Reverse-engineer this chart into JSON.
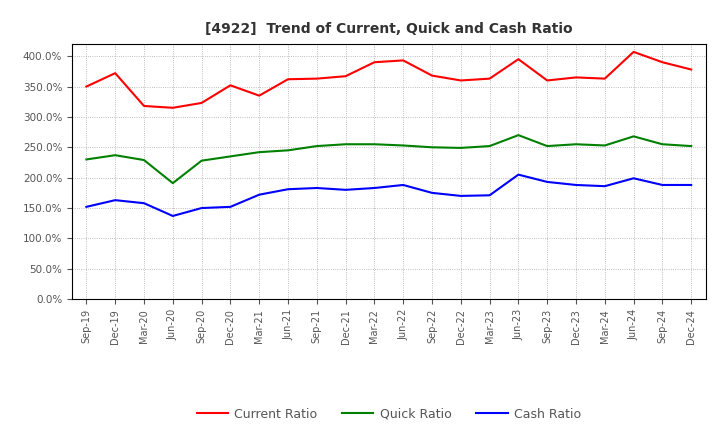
{
  "title": "[4922]  Trend of Current, Quick and Cash Ratio",
  "labels": [
    "Sep-19",
    "Dec-19",
    "Mar-20",
    "Jun-20",
    "Sep-20",
    "Dec-20",
    "Mar-21",
    "Jun-21",
    "Sep-21",
    "Dec-21",
    "Mar-22",
    "Jun-22",
    "Sep-22",
    "Dec-22",
    "Mar-23",
    "Jun-23",
    "Sep-23",
    "Dec-23",
    "Mar-24",
    "Jun-24",
    "Sep-24",
    "Dec-24"
  ],
  "current_ratio": [
    350,
    372,
    318,
    315,
    323,
    352,
    335,
    362,
    363,
    367,
    390,
    393,
    368,
    360,
    363,
    395,
    360,
    365,
    363,
    407,
    390,
    378
  ],
  "quick_ratio": [
    230,
    237,
    229,
    191,
    228,
    235,
    242,
    245,
    252,
    255,
    255,
    253,
    250,
    249,
    252,
    270,
    252,
    255,
    253,
    268,
    255,
    252
  ],
  "cash_ratio": [
    152,
    163,
    158,
    137,
    150,
    152,
    172,
    181,
    183,
    180,
    183,
    188,
    175,
    170,
    171,
    205,
    193,
    188,
    186,
    199,
    188,
    188
  ],
  "current_color": "#FF0000",
  "quick_color": "#008000",
  "cash_color": "#0000FF",
  "bg_color": "#FFFFFF",
  "plot_bg_color": "#FFFFFF",
  "grid_color": "#AAAAAA",
  "ylim": [
    0,
    420
  ],
  "yticks": [
    0,
    50,
    100,
    150,
    200,
    250,
    300,
    350,
    400
  ],
  "legend_labels": [
    "Current Ratio",
    "Quick Ratio",
    "Cash Ratio"
  ],
  "title_color": "#333333",
  "tick_color": "#555555"
}
